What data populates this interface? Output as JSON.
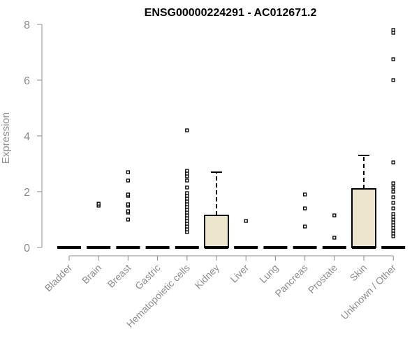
{
  "chart_data": {
    "type": "box",
    "title": "ENSG00000224291 - AC012671.2",
    "xlabel": "",
    "ylabel": "Expression",
    "ylim": [
      0,
      8
    ],
    "yticks": [
      0,
      2,
      4,
      6,
      8
    ],
    "grid": false,
    "legend": "none",
    "box_fill": "#ede6cc",
    "categories": [
      "Bladder",
      "Brain",
      "Breast",
      "Gastric",
      "Hematopoietic cells",
      "Kidney",
      "Liver",
      "Lung",
      "Pancreas",
      "Prostate",
      "Skin",
      "Unknown / Other"
    ],
    "boxes": [
      {
        "category": "Bladder",
        "q1": 0,
        "median": 0,
        "q3": 0,
        "whisker_low": 0,
        "whisker_high": 0,
        "outliers": []
      },
      {
        "category": "Brain",
        "q1": 0,
        "median": 0,
        "q3": 0,
        "whisker_low": 0,
        "whisker_high": 0,
        "outliers": [
          1.5,
          1.57
        ]
      },
      {
        "category": "Breast",
        "q1": 0,
        "median": 0,
        "q3": 0,
        "whisker_low": 0,
        "whisker_high": 0,
        "outliers": [
          1.0,
          1.25,
          1.3,
          1.5,
          1.55,
          1.85,
          1.9,
          2.4,
          2.7
        ]
      },
      {
        "category": "Gastric",
        "q1": 0,
        "median": 0,
        "q3": 0,
        "whisker_low": 0,
        "whisker_high": 0,
        "outliers": []
      },
      {
        "category": "Hematopoietic cells",
        "q1": 0,
        "median": 0,
        "q3": 0,
        "whisker_low": 0,
        "whisker_high": 0,
        "outliers": [
          0.55,
          0.65,
          0.75,
          0.85,
          0.95,
          1.05,
          1.15,
          1.25,
          1.35,
          1.45,
          1.55,
          1.65,
          1.75,
          1.85,
          1.95,
          2.15,
          2.4,
          2.55,
          2.65,
          2.75,
          4.2
        ]
      },
      {
        "category": "Kidney",
        "q1": 0,
        "median": 0,
        "q3": 1.15,
        "whisker_low": 0,
        "whisker_high": 2.7,
        "outliers": []
      },
      {
        "category": "Liver",
        "q1": 0,
        "median": 0,
        "q3": 0,
        "whisker_low": 0,
        "whisker_high": 0,
        "outliers": [
          0.95
        ]
      },
      {
        "category": "Lung",
        "q1": 0,
        "median": 0,
        "q3": 0,
        "whisker_low": 0,
        "whisker_high": 0,
        "outliers": []
      },
      {
        "category": "Pancreas",
        "q1": 0,
        "median": 0,
        "q3": 0,
        "whisker_low": 0,
        "whisker_high": 0,
        "outliers": [
          0.75,
          1.4,
          1.9
        ]
      },
      {
        "category": "Prostate",
        "q1": 0,
        "median": 0,
        "q3": 0,
        "whisker_low": 0,
        "whisker_high": 0,
        "outliers": [
          0.35,
          1.15
        ]
      },
      {
        "category": "Skin",
        "q1": 0,
        "median": 0,
        "q3": 2.1,
        "whisker_low": 0,
        "whisker_high": 3.3,
        "outliers": []
      },
      {
        "category": "Unknown / Other",
        "q1": 0,
        "median": 0,
        "q3": 0,
        "whisker_low": 0,
        "whisker_high": 0,
        "outliers": [
          0.4,
          0.5,
          0.6,
          0.7,
          0.8,
          0.9,
          1.0,
          1.1,
          1.2,
          1.4,
          1.6,
          1.8,
          2.0,
          2.15,
          2.3,
          3.05,
          6.0,
          6.75,
          7.7,
          7.8
        ]
      }
    ]
  }
}
